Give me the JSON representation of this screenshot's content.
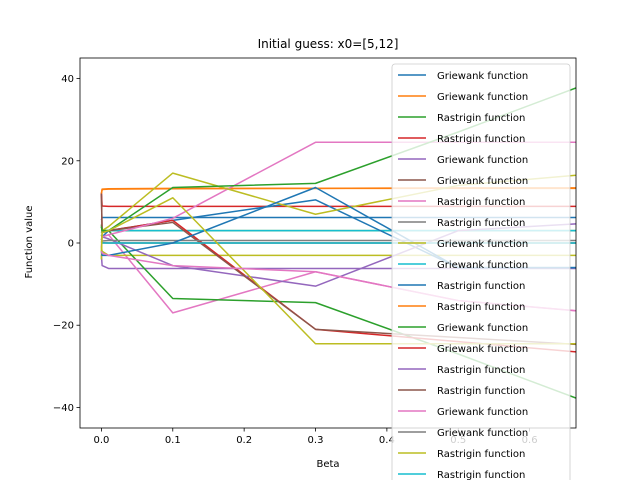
{
  "chart_data": {
    "type": "line",
    "title": "Initial guess: x0=[5,12]",
    "xlabel": "Beta",
    "ylabel": "Function value",
    "xlim": [
      -0.03,
      0.665
    ],
    "ylim": [
      -45,
      45
    ],
    "xticks": [
      0.0,
      0.1,
      0.2,
      0.3,
      0.4,
      0.5,
      0.6
    ],
    "xtick_labels": [
      "0.0",
      "0.1",
      "0.2",
      "0.3",
      "0.4",
      "0.5",
      "0.6"
    ],
    "yticks": [
      -40,
      -20,
      0,
      20,
      40
    ],
    "ytick_labels": [
      "−40",
      "−20",
      "0",
      "20",
      "40"
    ],
    "grid": false,
    "legend_position": "top-right",
    "x": [
      0.0,
      0.001,
      0.01,
      0.1,
      0.3,
      0.5,
      0.7
    ],
    "series": [
      {
        "name": "Griewank function",
        "color": "#1f77b4",
        "values": [
          5.6,
          6.2,
          6.2,
          6.2,
          6.2,
          6.2,
          6.2
        ]
      },
      {
        "name": "Griewank function",
        "color": "#ff7f0e",
        "values": [
          12.0,
          13.1,
          13.2,
          13.3,
          13.3,
          13.3,
          13.3
        ]
      },
      {
        "name": "Rastrigin function",
        "color": "#2ca02c",
        "values": [
          4.0,
          3.0,
          3.0,
          3.0,
          3.0,
          3.0,
          3.0
        ]
      },
      {
        "name": "Rastrigin function",
        "color": "#d62728",
        "values": [
          12.0,
          9.0,
          8.9,
          8.9,
          8.9,
          8.9,
          8.9
        ]
      },
      {
        "name": "Griewank function",
        "color": "#9467bd",
        "values": [
          -3.0,
          -5.5,
          -6.2,
          -6.2,
          -6.2,
          -6.2,
          -6.2
        ]
      },
      {
        "name": "Griewank function",
        "color": "#8c564b",
        "values": [
          1.0,
          0.1,
          0.0,
          0.0,
          0.0,
          0.0,
          0.0
        ]
      },
      {
        "name": "Rastrigin function",
        "color": "#e377c2",
        "values": [
          -1.0,
          1.5,
          2.0,
          -17.0,
          -7.0,
          -14.0,
          -17.0
        ]
      },
      {
        "name": "Rastrigin function",
        "color": "#7f7f7f",
        "values": [
          0.5,
          0.0,
          0.0,
          0.0,
          0.0,
          0.0,
          0.0
        ]
      },
      {
        "name": "Griewank function",
        "color": "#bcbd22",
        "values": [
          -1.0,
          -2.0,
          -3.0,
          -3.0,
          -3.0,
          -3.0,
          -3.0
        ]
      },
      {
        "name": "Griewank function",
        "color": "#17becf",
        "values": [
          2.5,
          3.0,
          3.0,
          3.0,
          3.0,
          3.0,
          3.0
        ]
      },
      {
        "name": "Rastrigin function",
        "color": "#1f77b4",
        "values": [
          2.0,
          1.5,
          3.0,
          5.5,
          10.5,
          -6.0,
          -6.0
        ]
      },
      {
        "name": "Rastrigin function",
        "color": "#ff7f0e",
        "values": [
          12.0,
          13.0,
          13.1,
          13.2,
          13.3,
          13.4,
          13.4
        ]
      },
      {
        "name": "Griewank function",
        "color": "#2ca02c",
        "values": [
          4.5,
          3.0,
          3.0,
          -13.5,
          -14.5,
          -27.0,
          -40.0
        ]
      },
      {
        "name": "Griewank function",
        "color": "#d62728",
        "values": [
          12.0,
          2.5,
          3.0,
          5.5,
          -21.0,
          -24.0,
          -27.0
        ]
      },
      {
        "name": "Rastrigin function",
        "color": "#9467bd",
        "values": [
          2.0,
          1.5,
          1.0,
          -5.5,
          -10.5,
          3.0,
          5.0
        ]
      },
      {
        "name": "Rastrigin function",
        "color": "#8c564b",
        "values": [
          12.0,
          2.5,
          3.0,
          5.0,
          -21.0,
          -23.0,
          -25.0
        ]
      },
      {
        "name": "Griewank function",
        "color": "#e377c2",
        "values": [
          1.0,
          1.5,
          2.0,
          6.0,
          24.5,
          24.5,
          24.5
        ]
      },
      {
        "name": "Griewank function",
        "color": "#7f7f7f",
        "values": [
          0.0,
          0.5,
          0.6,
          0.6,
          0.6,
          0.6,
          0.6
        ]
      },
      {
        "name": "Rastrigin function",
        "color": "#bcbd22",
        "values": [
          -4.0,
          3.0,
          4.0,
          17.0,
          7.0,
          14.0,
          17.0
        ]
      },
      {
        "name": "Rastrigin function",
        "color": "#17becf",
        "values": [
          0.0,
          0.0,
          0.0,
          0.0,
          0.0,
          0.0,
          0.0
        ]
      },
      {
        "name": "",
        "color": "#1f77b4",
        "values": [
          -2.0,
          -3.0,
          -3.0,
          0.0,
          13.5,
          -6.0,
          -6.0
        ]
      },
      {
        "name": "",
        "color": "#2ca02c",
        "values": [
          4.0,
          3.0,
          3.0,
          13.5,
          14.5,
          27.0,
          40.0
        ]
      },
      {
        "name": "",
        "color": "#bcbd22",
        "values": [
          -2.0,
          2.5,
          3.0,
          11.0,
          -24.5,
          -24.5,
          -24.5
        ]
      },
      {
        "name": "",
        "color": "#e377c2",
        "values": [
          -2.0,
          -2.5,
          -3.0,
          -5.5,
          -7.0,
          -14.0,
          -17.0
        ]
      }
    ]
  }
}
